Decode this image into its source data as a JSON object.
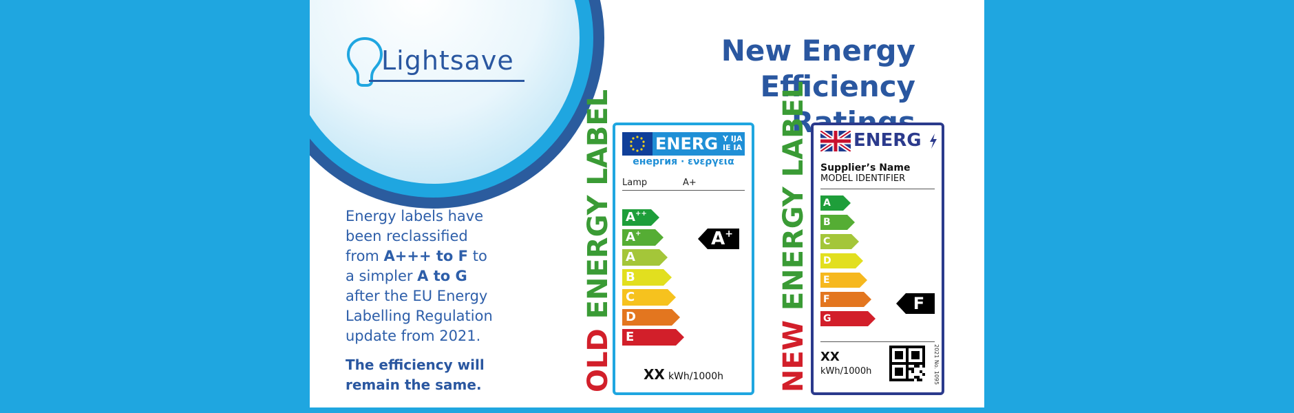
{
  "brand": {
    "name": "Lightsave"
  },
  "title": {
    "line1": "New Energy",
    "line2": "Efficiency Ratings"
  },
  "description": {
    "p1": "Energy labels have",
    "p2": "been reclassified",
    "p3a": "from ",
    "p3b": "A+++ to F",
    "p3c": " to",
    "p4a": "a simpler ",
    "p4b": "A to G",
    "p5": "after the EU Energy",
    "p6": "Labelling Regulation",
    "p7": "update from 2021.",
    "conclusion1": "The efficiency will",
    "conclusion2": "remain the same."
  },
  "old_label": {
    "side_text_red": "OLD",
    "side_text_green": "ENERGY LABEL",
    "header_word": "ENERG",
    "header_suffix_top": "Y IJA",
    "header_suffix_bottom": "IE IA",
    "header_sub": "енергия · ενεργεια",
    "product": "Lamp",
    "product_class": "A+",
    "classes": [
      {
        "main": "A",
        "sup": "++",
        "color": "#1e9e3a"
      },
      {
        "main": "A",
        "sup": "+",
        "color": "#55ad34"
      },
      {
        "main": "A",
        "sup": "",
        "color": "#a4c639"
      },
      {
        "main": "B",
        "sup": "",
        "color": "#e2df1f"
      },
      {
        "main": "C",
        "sup": "",
        "color": "#f6c21e"
      },
      {
        "main": "D",
        "sup": "",
        "color": "#e3761f"
      },
      {
        "main": "E",
        "sup": "",
        "color": "#d21f2a"
      }
    ],
    "rating_main": "A",
    "rating_sup": "+",
    "consumption_value": "XX",
    "consumption_unit": "kWh/1000h"
  },
  "new_label": {
    "side_text_red": "NEW",
    "side_text_green": "ENERGY LABEL",
    "header_word": "ENERG",
    "supplier": "Supplier’s Name",
    "model": "MODEL IDENTIFIER",
    "classes": [
      {
        "letter": "A",
        "color": "#1e9e3a"
      },
      {
        "letter": "B",
        "color": "#55ad34"
      },
      {
        "letter": "C",
        "color": "#a4c639"
      },
      {
        "letter": "D",
        "color": "#e2df1f"
      },
      {
        "letter": "E",
        "color": "#f6b81e"
      },
      {
        "letter": "F",
        "color": "#e3761f"
      },
      {
        "letter": "G",
        "color": "#d21f2a"
      }
    ],
    "rating": "F",
    "consumption_value": "XX",
    "consumption_unit": "kWh/1000h",
    "regulation": "2021 No. 1095"
  },
  "colors": {
    "background": "#1fa6e0",
    "title_blue": "#2a57a0",
    "old_border": "#1fa6e0",
    "new_border": "#2b3a8c"
  }
}
